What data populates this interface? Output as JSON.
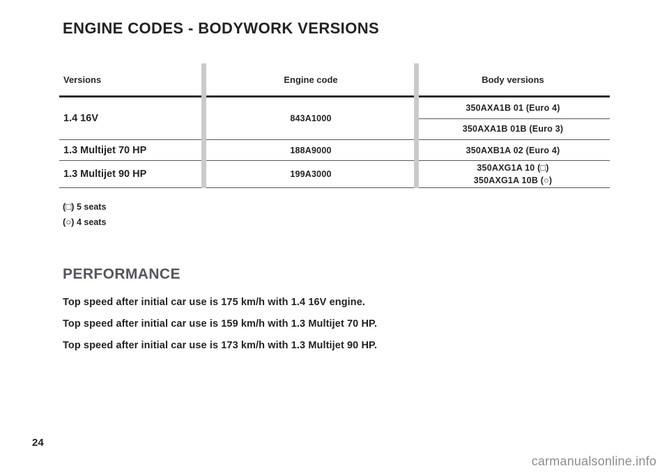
{
  "page": {
    "title": "ENGINE CODES - BODYWORK VERSIONS",
    "page_number": "24",
    "watermark": "carmanualsonline.info"
  },
  "table": {
    "headers": [
      "Versions",
      "Engine code",
      "Body versions"
    ],
    "rows": [
      {
        "version": "1.4 16V",
        "engine_code": "843A1000",
        "body_versions": [
          "350AXA1B 01 (Euro 4)",
          "350AXA1B 01B (Euro 3)"
        ]
      },
      {
        "version": "1.3 Multijet 70 HP",
        "engine_code": "188A9000",
        "body_versions": [
          "350AXB1A 02 (Euro 4)"
        ]
      },
      {
        "version": "1.3 Multijet 90 HP",
        "engine_code": "199A3000",
        "body_versions": [
          "350AXG1A 10 (□)",
          "350AXG1A 10B (○)"
        ]
      }
    ],
    "footnotes": [
      {
        "symbol": "(□)",
        "label": "5 seats"
      },
      {
        "symbol": "(○)",
        "label": "4 seats"
      }
    ]
  },
  "performance": {
    "title": "PERFORMANCE",
    "lines": [
      "Top speed after initial car use is 175 km/h with 1.4 16V engine.",
      "Top speed after initial car use is 159 km/h with 1.3 Multijet 70 HP.",
      "Top speed after initial car use is 173 km/h with 1.3 Multijet 90 HP."
    ]
  },
  "colors": {
    "text": "#262223",
    "section_heading": "#57555c",
    "column_divider": "#cacacc",
    "watermark": "#8d8d8d"
  }
}
